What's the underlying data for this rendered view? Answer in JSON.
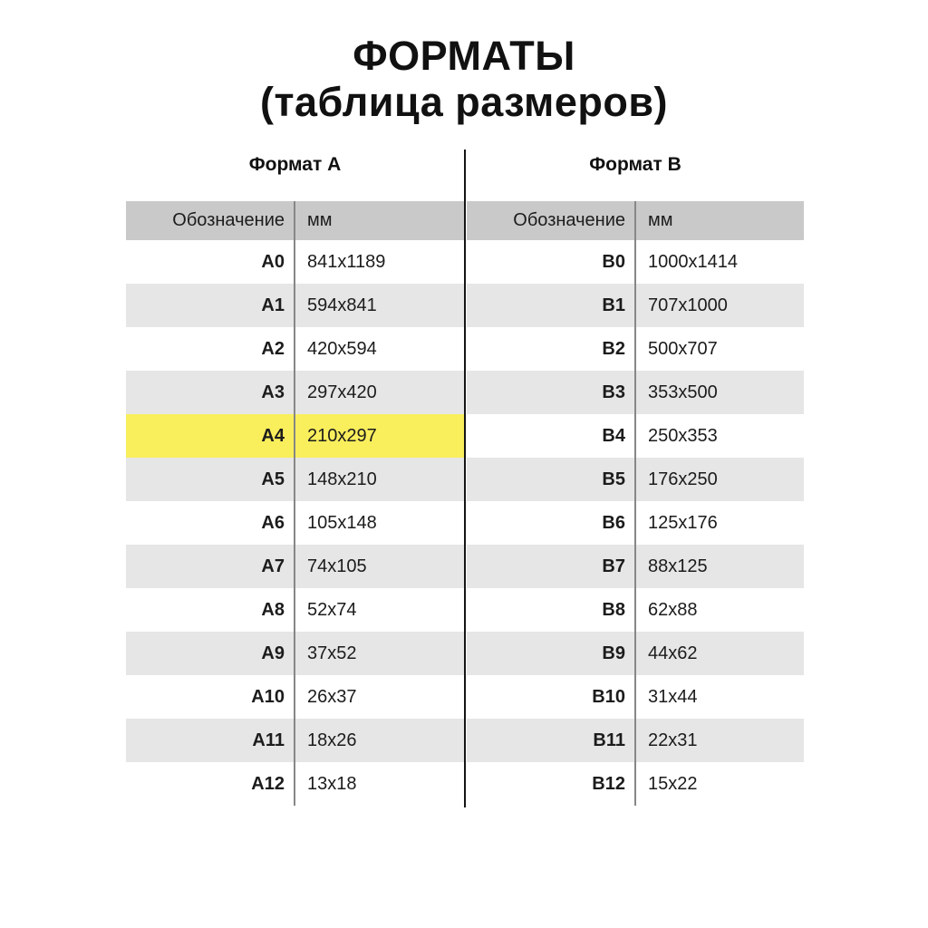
{
  "title": {
    "line1": "ФОРМАТЫ",
    "line2": "(таблица размеров)"
  },
  "tables": [
    {
      "section_title": "Формат А",
      "columns": [
        "Обозначение",
        "мм"
      ],
      "rows": [
        {
          "code": "A0",
          "size": "841x1189",
          "highlight": false
        },
        {
          "code": "A1",
          "size": "594x841",
          "highlight": false
        },
        {
          "code": "A2",
          "size": "420x594",
          "highlight": false
        },
        {
          "code": "A3",
          "size": "297x420",
          "highlight": false
        },
        {
          "code": "A4",
          "size": "210x297",
          "highlight": true
        },
        {
          "code": "A5",
          "size": "148x210",
          "highlight": false
        },
        {
          "code": "A6",
          "size": "105x148",
          "highlight": false
        },
        {
          "code": "A7",
          "size": "74x105",
          "highlight": false
        },
        {
          "code": "A8",
          "size": "52x74",
          "highlight": false
        },
        {
          "code": "A9",
          "size": "37x52",
          "highlight": false
        },
        {
          "code": "A10",
          "size": "26x37",
          "highlight": false
        },
        {
          "code": "A11",
          "size": "18x26",
          "highlight": false
        },
        {
          "code": "A12",
          "size": "13x18",
          "highlight": false
        }
      ]
    },
    {
      "section_title": "Формат B",
      "columns": [
        "Обозначение",
        "мм"
      ],
      "rows": [
        {
          "code": "B0",
          "size": "1000x1414",
          "highlight": false
        },
        {
          "code": "B1",
          "size": "707x1000",
          "highlight": false
        },
        {
          "code": "B2",
          "size": "500x707",
          "highlight": false
        },
        {
          "code": "B3",
          "size": "353x500",
          "highlight": false
        },
        {
          "code": "B4",
          "size": "250x353",
          "highlight": false
        },
        {
          "code": "B5",
          "size": "176x250",
          "highlight": false
        },
        {
          "code": "B6",
          "size": "125x176",
          "highlight": false
        },
        {
          "code": "B7",
          "size": "88x125",
          "highlight": false
        },
        {
          "code": "B8",
          "size": "62x88",
          "highlight": false
        },
        {
          "code": "B9",
          "size": "44x62",
          "highlight": false
        },
        {
          "code": "B10",
          "size": "31x44",
          "highlight": false
        },
        {
          "code": "B11",
          "size": "22x31",
          "highlight": false
        },
        {
          "code": "B12",
          "size": "15x22",
          "highlight": false
        }
      ]
    }
  ],
  "colors": {
    "header_bg": "#c9c9c9",
    "alt_row_bg": "#e6e6e6",
    "highlight_bg": "#f9ee5c",
    "col_divider": "#878787",
    "center_line": "#151515"
  }
}
